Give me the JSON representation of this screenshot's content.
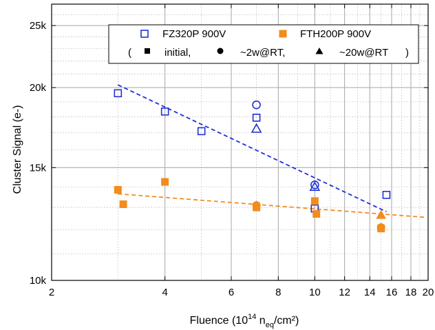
{
  "chart_data": {
    "type": "scatter",
    "xlabel": {
      "pre": "Fluence (10",
      "sup": "14",
      "mid": " n",
      "sub": "eq",
      "post": "/cm²)"
    },
    "ylabel": "Cluster Signal (e-)",
    "xscale": "log",
    "yscale": "log",
    "xlim": [
      2,
      20
    ],
    "ylim": [
      10000,
      27000
    ],
    "x_ticks": [
      {
        "v": 2,
        "label": "2"
      },
      {
        "v": 4,
        "label": "4"
      },
      {
        "v": 6,
        "label": "6"
      },
      {
        "v": 8,
        "label": "8"
      },
      {
        "v": 10,
        "label": "10"
      },
      {
        "v": 12,
        "label": "12"
      },
      {
        "v": 14,
        "label": "14"
      },
      {
        "v": 16,
        "label": "16"
      },
      {
        "v": 18,
        "label": "18"
      },
      {
        "v": 20,
        "label": "20"
      }
    ],
    "y_ticks": [
      {
        "v": 10000,
        "label": "10k"
      },
      {
        "v": 15000,
        "label": "15k"
      },
      {
        "v": 20000,
        "label": "20k"
      },
      {
        "v": 25000,
        "label": "25k"
      }
    ],
    "grid": true,
    "legend": {
      "placement": "top-right",
      "entries": [
        {
          "name": "FZ320P 900V",
          "color": "#1f2fd6",
          "fill": "open"
        },
        {
          "name": "FTH200P 900V",
          "color": "#f28c1c",
          "fill": "filled"
        }
      ],
      "marker_key": {
        "open_paren": "(",
        "close_paren": ")",
        "items": [
          {
            "marker": "square",
            "label": "initial,"
          },
          {
            "marker": "circle",
            "label": "~2w@RT,"
          },
          {
            "marker": "triangle",
            "label": "~20w@RT"
          }
        ]
      }
    },
    "series": [
      {
        "name": "FZ320P 900V",
        "color": "#1f2fd6",
        "fill": "open",
        "points": [
          {
            "x": 3.0,
            "y": 19600,
            "m": "square"
          },
          {
            "x": 4.0,
            "y": 18350,
            "m": "square"
          },
          {
            "x": 5.0,
            "y": 17100,
            "m": "square"
          },
          {
            "x": 7.0,
            "y": 17950,
            "m": "square"
          },
          {
            "x": 7.0,
            "y": 18800,
            "m": "circle"
          },
          {
            "x": 7.0,
            "y": 17250,
            "m": "triangle"
          },
          {
            "x": 10.0,
            "y": 14100,
            "m": "circle"
          },
          {
            "x": 10.0,
            "y": 14000,
            "m": "triangle"
          },
          {
            "x": 10.0,
            "y": 12950,
            "m": "square"
          },
          {
            "x": 15.5,
            "y": 13600,
            "m": "square"
          }
        ],
        "fit": [
          [
            3.0,
            20200
          ],
          [
            15.5,
            12800
          ]
        ]
      },
      {
        "name": "FTH200P 900V",
        "color": "#f28c1c",
        "fill": "filled",
        "points": [
          {
            "x": 3.0,
            "y": 13850,
            "m": "square"
          },
          {
            "x": 3.1,
            "y": 13150,
            "m": "square"
          },
          {
            "x": 4.0,
            "y": 14250,
            "m": "square"
          },
          {
            "x": 7.0,
            "y": 13100,
            "m": "circle"
          },
          {
            "x": 7.0,
            "y": 13000,
            "m": "square"
          },
          {
            "x": 10.0,
            "y": 13300,
            "m": "square"
          },
          {
            "x": 10.1,
            "y": 12700,
            "m": "square"
          },
          {
            "x": 15.0,
            "y": 12650,
            "m": "triangle"
          },
          {
            "x": 15.0,
            "y": 12100,
            "m": "circle"
          },
          {
            "x": 15.0,
            "y": 12050,
            "m": "square"
          }
        ],
        "fit": [
          [
            3.0,
            13650
          ],
          [
            19.5,
            12550
          ]
        ]
      }
    ]
  }
}
